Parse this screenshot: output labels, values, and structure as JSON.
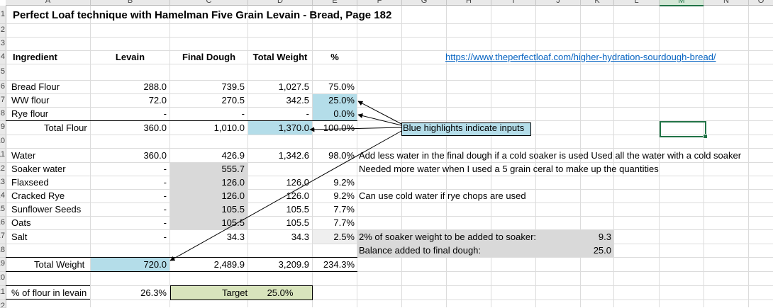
{
  "columns": [
    "A",
    "B",
    "C",
    "D",
    "E",
    "F",
    "G",
    "H",
    "I",
    "J",
    "K",
    "L",
    "M",
    "N",
    "O"
  ],
  "selected_column": "M",
  "rows": [
    "1",
    "2",
    "3",
    "4",
    "5",
    "6",
    "7",
    "8",
    "9",
    "10",
    "11",
    "12",
    "13",
    "14",
    "15",
    "16",
    "17",
    "18",
    "19",
    "20",
    "21",
    "22"
  ],
  "title": "Perfect Loaf technique with Hamelman Five Grain Levain - Bread, Page 182",
  "headers": {
    "ingredient": "Ingredient",
    "levain": "Levain",
    "final_dough": "Final Dough",
    "total_weight": "Total Weight",
    "pct": "%"
  },
  "url": "https://www.theperfectloaf.com/higher-hydration-sourdough-bread/",
  "flour_rows": [
    {
      "name": "Bread Flour",
      "levain": "288.0",
      "final": "739.5",
      "total": "1,027.5",
      "pct": "75.0%"
    },
    {
      "name": "WW flour",
      "levain": "72.0",
      "final": "270.5",
      "total": "342.5",
      "pct": "25.0%"
    },
    {
      "name": "Rye flour",
      "levain": "-",
      "final": "-",
      "total": "-",
      "pct": "0.0%"
    }
  ],
  "total_flour": {
    "name": "Total Flour",
    "levain": "360.0",
    "final": "1,010.0",
    "total": "1,370.0",
    "pct": "100.0%"
  },
  "blue_note": "Blue highlights indicate inputs",
  "other_rows": [
    {
      "name": "Water",
      "levain": "360.0",
      "final": "426.9",
      "total": "1,342.6",
      "pct": "98.0%"
    },
    {
      "name": "Soaker water",
      "levain": "-",
      "final": "555.7",
      "total": "",
      "pct": ""
    },
    {
      "name": "Flaxseed",
      "levain": "-",
      "final": "126.0",
      "total": "126.0",
      "pct": "9.2%"
    },
    {
      "name": "Cracked Rye",
      "levain": "-",
      "final": "126.0",
      "total": "126.0",
      "pct": "9.2%"
    },
    {
      "name": "Sunflower Seeds",
      "levain": "-",
      "final": "105.5",
      "total": "105.5",
      "pct": "7.7%"
    },
    {
      "name": "Oats",
      "levain": "-",
      "final": "105.5",
      "total": "105.5",
      "pct": "7.7%"
    },
    {
      "name": "Salt",
      "levain": "-",
      "final": "34.3",
      "total": "34.3",
      "pct": "2.5%"
    }
  ],
  "notes": {
    "water": "Add less water in the final dough if a cold soaker is used Used all the water with a cold soaker",
    "soaker": "Needed more water when I used a 5 grain ceral to make up the quantities",
    "rye": "Can use cold water if rye chops are used"
  },
  "salt_calc": {
    "label1": "2% of soaker weight to be added to soaker:",
    "value1": "9.3",
    "label2": "Balance added to final dough:",
    "value2": "25.0"
  },
  "total_weight": {
    "name": "Total Weight",
    "levain": "720.0",
    "final": "2,489.9",
    "total": "3,209.9",
    "pct": "234.3%"
  },
  "levain_flour": {
    "name": "% of flour in levain",
    "value": "26.3%",
    "target_label": "Target",
    "target_value": "25.0%"
  }
}
